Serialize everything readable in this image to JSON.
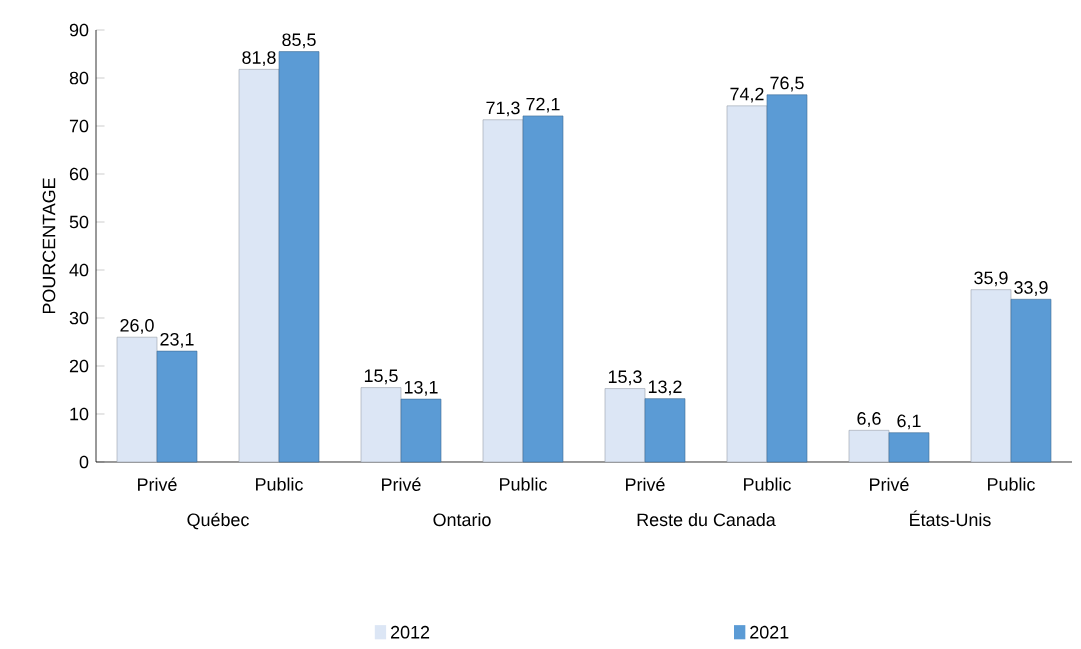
{
  "chart_data": {
    "type": "bar",
    "ylabel": "POURCENTAGE",
    "categories": [
      "Privé",
      "Public",
      "Privé",
      "Public",
      "Privé",
      "Public",
      "Privé",
      "Public"
    ],
    "annotations": [
      "Québec",
      "Ontario",
      "Reste du Canada",
      "États-Unis"
    ],
    "series": [
      {
        "name": "2012",
        "color": "#dce6f5",
        "values": [
          26.0,
          81.8,
          15.5,
          71.3,
          15.3,
          74.2,
          6.6,
          35.9
        ],
        "value_labels": [
          "26,0",
          "81,8",
          "15,5",
          "71,3",
          "15,3",
          "74,2",
          "6,6",
          "35,9"
        ]
      },
      {
        "name": "2021",
        "color": "#5b9bd5",
        "values": [
          23.1,
          85.5,
          13.1,
          72.1,
          13.2,
          76.5,
          6.1,
          33.9
        ],
        "value_labels": [
          "23,1",
          "85,5",
          "13,1",
          "72,1",
          "13,2",
          "76,5",
          "6,1",
          "33,9"
        ]
      }
    ],
    "ylim": [
      0,
      90
    ],
    "yticks": [
      0,
      10,
      20,
      30,
      40,
      50,
      60,
      70,
      80,
      90
    ],
    "grid": false,
    "legend": "bottom"
  }
}
